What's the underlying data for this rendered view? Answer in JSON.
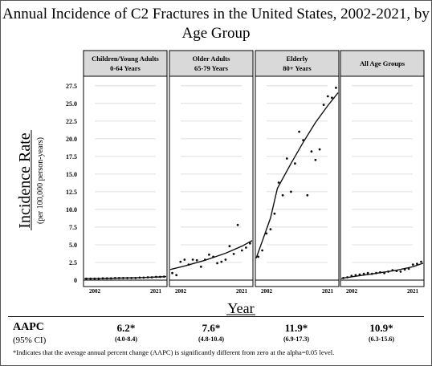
{
  "title": {
    "line1": "Annual Incidence of C2 Fractures in the United States, 2002-2021, by",
    "line2": "Age Group"
  },
  "y_axis": {
    "label": "Incidence Rate",
    "sublabel": "(per 100,000 person-years)"
  },
  "x_axis": {
    "label": "Year"
  },
  "panels": [
    {
      "header_line1": "Children/Young Adults",
      "header_line2": "0-64 Years"
    },
    {
      "header_line1": "Older Adults",
      "header_line2": "65-79 Years"
    },
    {
      "header_line1": "Elderly",
      "header_line2": "80+ Years"
    },
    {
      "header_line1": "All Age Groups",
      "header_line2": ""
    }
  ],
  "aapc": {
    "label": "AAPC",
    "ci_label": "(95% CI)",
    "values": [
      "6.2*",
      "7.6*",
      "11.9*",
      "10.9*"
    ],
    "cis": [
      "(4.0-8.4)",
      "(4.8-10.4)",
      "(6.9-17.3)",
      "(6.3-15.6)"
    ]
  },
  "footnote": "*Indicates that the average annual percent change (AAPC) is significantly different from zero at the alpha=0.05 level.",
  "chart_data": {
    "type": "scatter",
    "y_ticks": [
      "0",
      "2.5",
      "5.0",
      "7.5",
      "10.0",
      "12.5",
      "15.0",
      "17.5",
      "20.0",
      "22.5",
      "25.0",
      "27.5"
    ],
    "ylim": [
      0,
      28.5
    ],
    "xlim": [
      2001.5,
      2021.5
    ],
    "x_tick_labels": [
      "2002",
      "2021"
    ],
    "grid": "horizontal",
    "panels": [
      {
        "name": "Children/Young Adults 0-64 Years",
        "points": [
          [
            2002,
            0.2
          ],
          [
            2003,
            0.2
          ],
          [
            2004,
            0.2
          ],
          [
            2005,
            0.2
          ],
          [
            2006,
            0.25
          ],
          [
            2007,
            0.25
          ],
          [
            2008,
            0.25
          ],
          [
            2009,
            0.3
          ],
          [
            2010,
            0.3
          ],
          [
            2011,
            0.3
          ],
          [
            2012,
            0.3
          ],
          [
            2013,
            0.3
          ],
          [
            2014,
            0.3
          ],
          [
            2015,
            0.35
          ],
          [
            2016,
            0.35
          ],
          [
            2017,
            0.4
          ],
          [
            2018,
            0.4
          ],
          [
            2019,
            0.45
          ],
          [
            2020,
            0.45
          ],
          [
            2021,
            0.5
          ]
        ],
        "trend": [
          [
            2001.5,
            0.2
          ],
          [
            2005,
            0.22
          ],
          [
            2010,
            0.28
          ],
          [
            2015,
            0.35
          ],
          [
            2020,
            0.45
          ],
          [
            2021.5,
            0.5
          ]
        ]
      },
      {
        "name": "Older Adults 65-79 Years",
        "points": [
          [
            2002,
            1.0
          ],
          [
            2003,
            0.7
          ],
          [
            2004,
            2.6
          ],
          [
            2005,
            2.9
          ],
          [
            2006,
            2.2
          ],
          [
            2007,
            2.9
          ],
          [
            2008,
            2.8
          ],
          [
            2009,
            1.9
          ],
          [
            2010,
            2.9
          ],
          [
            2011,
            3.6
          ],
          [
            2012,
            3.3
          ],
          [
            2013,
            2.4
          ],
          [
            2014,
            2.6
          ],
          [
            2015,
            2.9
          ],
          [
            2016,
            4.8
          ],
          [
            2017,
            3.7
          ],
          [
            2018,
            7.8
          ],
          [
            2019,
            4.2
          ],
          [
            2020,
            4.6
          ],
          [
            2021,
            5.2
          ]
        ],
        "trend": [
          [
            2001.5,
            1.5
          ],
          [
            2005,
            2.0
          ],
          [
            2010,
            2.8
          ],
          [
            2015,
            3.8
          ],
          [
            2019,
            4.8
          ],
          [
            2021.5,
            5.6
          ]
        ]
      },
      {
        "name": "Elderly 80+ Years",
        "points": [
          [
            2002,
            3.3
          ],
          [
            2003,
            4.2
          ],
          [
            2004,
            6.6
          ],
          [
            2005,
            7.2
          ],
          [
            2006,
            9.4
          ],
          [
            2007,
            13.8
          ],
          [
            2008,
            12.0
          ],
          [
            2009,
            17.2
          ],
          [
            2010,
            12.5
          ],
          [
            2011,
            16.5
          ],
          [
            2012,
            21.0
          ],
          [
            2013,
            19.8
          ],
          [
            2014,
            12.0
          ],
          [
            2015,
            18.2
          ],
          [
            2016,
            17.0
          ],
          [
            2017,
            18.5
          ],
          [
            2018,
            24.8
          ],
          [
            2019,
            26.0
          ],
          [
            2020,
            25.8
          ],
          [
            2021,
            27.2
          ]
        ],
        "trend": [
          [
            2001.5,
            3.1
          ],
          [
            2003,
            5.5
          ],
          [
            2005,
            8.8
          ],
          [
            2006.7,
            13.0
          ],
          [
            2010,
            16.5
          ],
          [
            2013,
            19.5
          ],
          [
            2016,
            22.3
          ],
          [
            2019,
            24.7
          ],
          [
            2021.5,
            26.5
          ]
        ]
      },
      {
        "name": "All Age Groups",
        "points": [
          [
            2002,
            0.3
          ],
          [
            2003,
            0.4
          ],
          [
            2004,
            0.6
          ],
          [
            2005,
            0.7
          ],
          [
            2006,
            0.8
          ],
          [
            2007,
            0.9
          ],
          [
            2008,
            1.0
          ],
          [
            2009,
            0.9
          ],
          [
            2010,
            1.0
          ],
          [
            2011,
            1.1
          ],
          [
            2012,
            1.0
          ],
          [
            2013,
            1.2
          ],
          [
            2014,
            1.4
          ],
          [
            2015,
            1.3
          ],
          [
            2016,
            1.2
          ],
          [
            2017,
            1.5
          ],
          [
            2018,
            1.6
          ],
          [
            2019,
            2.2
          ],
          [
            2020,
            2.3
          ],
          [
            2021,
            2.6
          ]
        ],
        "trend": [
          [
            2001.5,
            0.25
          ],
          [
            2005,
            0.55
          ],
          [
            2010,
            0.95
          ],
          [
            2015,
            1.4
          ],
          [
            2019,
            1.9
          ],
          [
            2021.5,
            2.4
          ]
        ]
      }
    ]
  }
}
